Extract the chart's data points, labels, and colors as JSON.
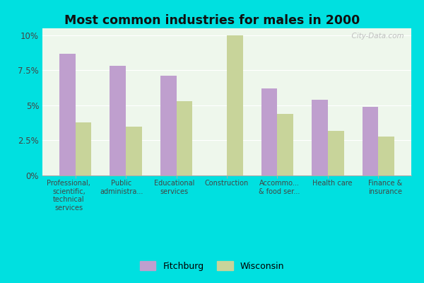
{
  "title": "Most common industries for males in 2000",
  "categories": [
    "Professional,\nscientific,\ntechnical\nservices",
    "Public\nadministra...",
    "Educational\nservices",
    "Construction",
    "Accommo...\n& food ser...",
    "Health care",
    "Finance &\ninsurance"
  ],
  "fitchburg_values": [
    8.7,
    7.8,
    7.1,
    0.0,
    6.2,
    5.4,
    4.9
  ],
  "wisconsin_values": [
    3.8,
    3.5,
    5.3,
    10.0,
    4.4,
    3.2,
    2.8
  ],
  "fitchburg_color": "#bf9fce",
  "wisconsin_color": "#c8d49a",
  "plot_bg_color": "#eef7ec",
  "cyan_bg": "#00e0e0",
  "ylim": [
    0,
    10.5
  ],
  "yticks": [
    0,
    2.5,
    5.0,
    7.5,
    10.0
  ],
  "ytick_labels": [
    "0%",
    "2.5%",
    "5%",
    "7.5%",
    "10%"
  ],
  "watermark": "  City-Data.com",
  "legend_fitchburg": "Fitchburg",
  "legend_wisconsin": "Wisconsin"
}
